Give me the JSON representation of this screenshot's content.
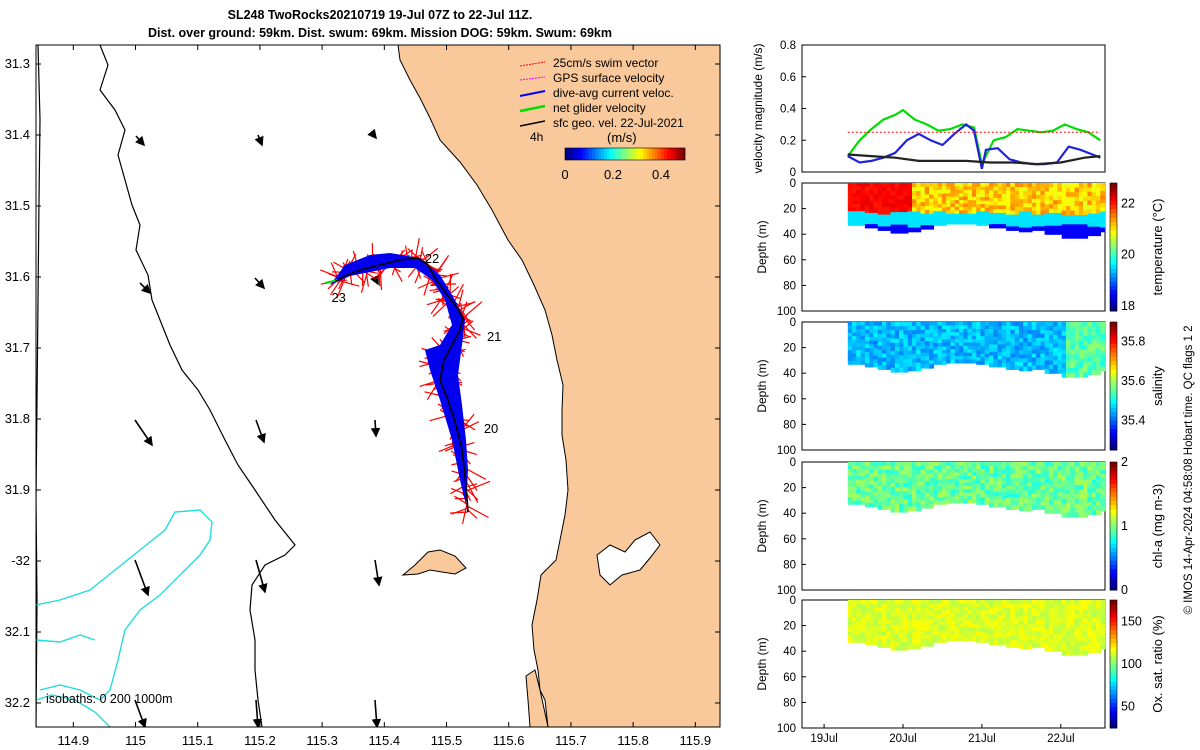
{
  "title": {
    "line1": "SL248 TwoRocks20210719 19-Jul 07Z to 22-Jul 11Z.",
    "line2": "Dist. over ground: 59km. Dist. swum: 69km. Mission DOG: 59km. Swum: 69km"
  },
  "credit": "© IMOS 14-Apr-2024 04:58:08 Hobart time. QC flags 1  2",
  "colors": {
    "land": "#f9c89b",
    "swim": "#ff0000",
    "gps": "#ff00ff",
    "current": "#0000ff",
    "net": "#00dd00",
    "geo": "#000000",
    "isobath": "#22dddd"
  },
  "map": {
    "legend": [
      {
        "label": "25cm/s swim vector",
        "color": "#ff0000"
      },
      {
        "label": "GPS surface velocity",
        "color": "#ff00ff"
      },
      {
        "label": "dive-avg current veloc.",
        "color": "#0000ff"
      },
      {
        "label": "net glider velocity",
        "color": "#00dd00"
      },
      {
        "label": "sfc geo. vel. 22-Jul-2021",
        "color": "#000000"
      }
    ],
    "scale_label": "4h",
    "colorbar": {
      "title": "(m/s)",
      "ticks": [
        "0",
        "0.2",
        "0.4"
      ],
      "range": [
        0,
        0.5
      ]
    },
    "isobath_label": "isobaths: 0   200  1000m",
    "day_labels": [
      {
        "text": "20",
        "lon": 115.56,
        "lat": -31.82
      },
      {
        "text": "21",
        "lon": 115.565,
        "lat": -31.69
      },
      {
        "text": "22",
        "lon": 115.465,
        "lat": -31.58
      },
      {
        "text": "23",
        "lon": 115.315,
        "lat": -31.635
      }
    ],
    "lon_ticks": [
      "114.9",
      "115",
      "115.1",
      "115.2",
      "115.3",
      "115.4",
      "115.5",
      "115.6",
      "115.7",
      "115.8",
      "115.9"
    ],
    "lat_ticks": [
      "31.3",
      "31.4",
      "31.5",
      "31.6",
      "31.7",
      "31.8",
      "31.9",
      "-32",
      "32.1",
      "32.2"
    ]
  },
  "chart_data": [
    {
      "type": "line",
      "ylabel": "velocity magnitude (m/s)",
      "ylim": [
        0,
        0.8
      ],
      "yticks": [
        "0",
        "0.2",
        "0.4",
        "0.6",
        "0.8"
      ],
      "xticks": [
        "19Jul",
        "20Jul",
        "21Jul",
        "22Jul"
      ],
      "series": [
        {
          "color": "#00dd00",
          "x": [
            19.3,
            19.45,
            19.6,
            19.75,
            19.9,
            20.0,
            20.15,
            20.3,
            20.45,
            20.6,
            20.75,
            20.9,
            21.0,
            21.15,
            21.3,
            21.45,
            21.6,
            21.75,
            21.9,
            22.05,
            22.2,
            22.35,
            22.5
          ],
          "y": [
            0.1,
            0.2,
            0.27,
            0.33,
            0.36,
            0.39,
            0.33,
            0.3,
            0.26,
            0.27,
            0.3,
            0.28,
            0.05,
            0.2,
            0.22,
            0.27,
            0.26,
            0.25,
            0.26,
            0.3,
            0.27,
            0.25,
            0.2
          ]
        },
        {
          "color": "#2222dd",
          "x": [
            19.3,
            19.45,
            19.6,
            19.75,
            19.9,
            20.05,
            20.2,
            20.35,
            20.5,
            20.65,
            20.8,
            20.9,
            21.0,
            21.05,
            21.2,
            21.35,
            21.5,
            21.65,
            21.8,
            21.95,
            22.1,
            22.25,
            22.4,
            22.5
          ],
          "y": [
            0.1,
            0.06,
            0.07,
            0.09,
            0.12,
            0.2,
            0.24,
            0.2,
            0.17,
            0.24,
            0.3,
            0.26,
            0.02,
            0.14,
            0.15,
            0.08,
            0.06,
            0.05,
            0.05,
            0.06,
            0.16,
            0.14,
            0.11,
            0.09
          ]
        },
        {
          "color": "#222222",
          "x": [
            19.3,
            19.6,
            19.9,
            20.2,
            20.5,
            20.8,
            21.1,
            21.4,
            21.7,
            22.0,
            22.3,
            22.5
          ],
          "y": [
            0.11,
            0.1,
            0.09,
            0.07,
            0.07,
            0.07,
            0.06,
            0.06,
            0.05,
            0.06,
            0.09,
            0.1
          ]
        },
        {
          "color": "#ff0000",
          "x": [
            19.3,
            20.0,
            20.5,
            21.0,
            21.5,
            22.0,
            22.5
          ],
          "y": [
            0.25,
            0.25,
            0.25,
            0.25,
            0.25,
            0.25,
            0.25
          ]
        }
      ]
    },
    {
      "type": "heatmap",
      "ylabel": "Depth (m)",
      "clabel": "temperature (°C)",
      "ylim": [
        100,
        0
      ],
      "cticks": [
        "18",
        "20",
        "22"
      ],
      "crange": [
        17.8,
        22.8
      ],
      "depth_bottom": [
        33,
        35,
        37,
        39,
        38,
        36,
        33,
        32,
        32,
        33,
        35,
        37,
        38,
        37,
        40,
        43,
        43,
        41,
        38
      ]
    },
    {
      "type": "heatmap",
      "ylabel": "Depth (m)",
      "clabel": "salinity",
      "ylim": [
        100,
        0
      ],
      "cticks": [
        "35.4",
        "35.6",
        "35.8"
      ],
      "crange": [
        35.25,
        35.9
      ],
      "depth_bottom": [
        33,
        35,
        37,
        39,
        38,
        36,
        33,
        32,
        32,
        33,
        35,
        37,
        38,
        37,
        40,
        43,
        43,
        41,
        38
      ]
    },
    {
      "type": "heatmap",
      "ylabel": "Depth (m)",
      "clabel": "chl-a (mg m-3)",
      "ylim": [
        100,
        0
      ],
      "cticks": [
        "0",
        "1",
        "2"
      ],
      "crange": [
        0,
        2
      ],
      "depth_bottom": [
        33,
        35,
        37,
        39,
        38,
        36,
        33,
        32,
        32,
        33,
        35,
        37,
        38,
        37,
        40,
        43,
        43,
        41,
        38
      ]
    },
    {
      "type": "heatmap",
      "ylabel": "Depth (m)",
      "clabel": "Ox. sat. ratio (%)",
      "ylim": [
        100,
        0
      ],
      "cticks": [
        "50",
        "100",
        "150"
      ],
      "crange": [
        25,
        175
      ],
      "depth_bottom": [
        33,
        35,
        37,
        39,
        38,
        36,
        33,
        32,
        32,
        33,
        35,
        37,
        38,
        37,
        40,
        43,
        43,
        41,
        38
      ]
    }
  ]
}
